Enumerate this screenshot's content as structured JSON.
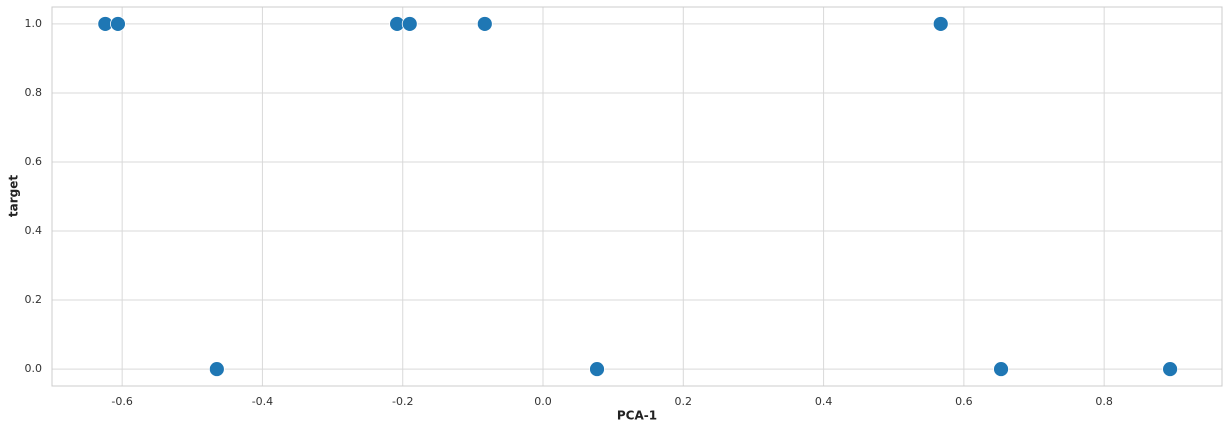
{
  "chart_data": {
    "type": "scatter",
    "x_label": "PCA-1",
    "y_label": "target",
    "x": [
      -0.624,
      -0.606,
      -0.465,
      -0.208,
      -0.19,
      -0.083,
      0.077,
      0.567,
      0.653,
      0.894
    ],
    "values": [
      1,
      1,
      0,
      1,
      1,
      1,
      0,
      1,
      0,
      0
    ],
    "color": "#1f77b4",
    "xlim": [
      -0.7,
      0.968
    ],
    "ylim": [
      -0.049,
      1.049
    ],
    "xticks": [
      -0.6,
      -0.4,
      -0.2,
      {
        "value": 0,
        "label": "0.0"
      },
      0.2,
      0.4,
      0.6,
      0.8
    ],
    "yticks": [
      {
        "value": 0,
        "label": "0.0"
      },
      0.2,
      0.4,
      0.6,
      0.8,
      {
        "value": 1,
        "label": "1.0"
      }
    ],
    "grid": true
  }
}
